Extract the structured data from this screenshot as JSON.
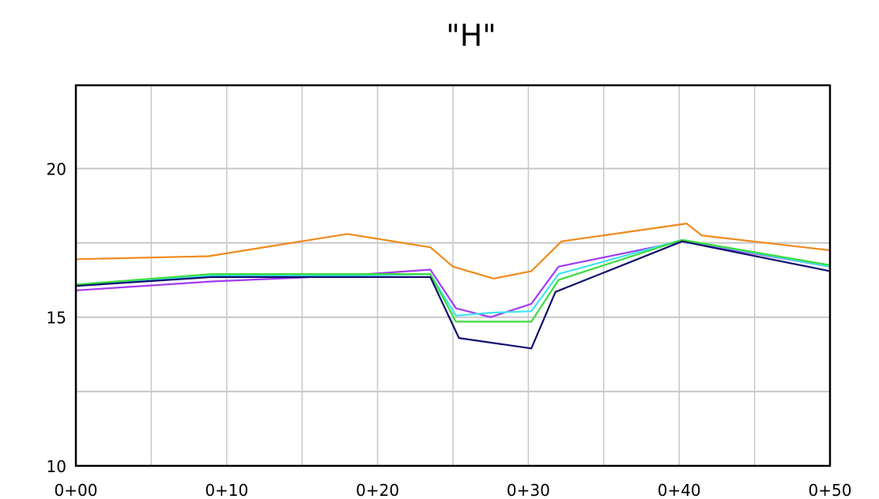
{
  "chart_data": {
    "type": "line",
    "title": "\"H\"",
    "xlabel": "",
    "ylabel": "",
    "xlim": [
      0,
      50
    ],
    "ylim": [
      10,
      22.8
    ],
    "grid": true,
    "legend": "none",
    "x_ticks": [
      {
        "value": 0,
        "label": "0+00"
      },
      {
        "value": 10,
        "label": "0+10"
      },
      {
        "value": 20,
        "label": "0+20"
      },
      {
        "value": 30,
        "label": "0+30"
      },
      {
        "value": 40,
        "label": "0+40"
      },
      {
        "value": 50,
        "label": "0+50"
      }
    ],
    "y_ticks": [
      {
        "value": 10,
        "label": "10"
      },
      {
        "value": 15,
        "label": "15"
      },
      {
        "value": 20,
        "label": "20"
      }
    ],
    "x_gridlines": [
      0,
      5,
      10,
      15,
      20,
      25,
      30,
      35,
      40,
      45,
      50
    ],
    "y_gridlines": [
      12.5,
      15,
      17.5,
      20
    ],
    "series": [
      {
        "color": "#f08a1c",
        "x": [
          0,
          8.8,
          18,
          23.5,
          25,
          27.7,
          30.2,
          32.2,
          40.5,
          41.5,
          50
        ],
        "y": [
          16.95,
          17.05,
          17.8,
          17.35,
          16.7,
          16.3,
          16.55,
          17.55,
          18.15,
          17.75,
          17.25
        ]
      },
      {
        "color": "#a23cf0",
        "x": [
          0,
          9,
          18,
          23.5,
          25.2,
          27.5,
          30.2,
          32,
          40.2,
          50
        ],
        "y": [
          15.9,
          16.2,
          16.4,
          16.6,
          15.3,
          15,
          15.45,
          16.7,
          17.55,
          16.7
        ]
      },
      {
        "color": "#3ce6f0",
        "x": [
          0,
          9,
          18,
          23.5,
          25.2,
          27.5,
          30.2,
          32,
          40.2,
          50
        ],
        "y": [
          16.05,
          16.4,
          16.4,
          16.45,
          15.05,
          15.15,
          15.2,
          16.45,
          17.6,
          16.7
        ]
      },
      {
        "color": "#3cdc3c",
        "x": [
          0,
          9,
          18,
          23.5,
          25.2,
          27.5,
          30.2,
          32,
          40.2,
          50
        ],
        "y": [
          16.1,
          16.45,
          16.45,
          16.45,
          14.85,
          14.85,
          14.85,
          16.25,
          17.6,
          16.75
        ]
      },
      {
        "color": "#10106e",
        "x": [
          0,
          9,
          18,
          23.5,
          25.4,
          30.2,
          31.8,
          40.2,
          50
        ],
        "y": [
          16.05,
          16.35,
          16.35,
          16.35,
          14.3,
          13.95,
          15.85,
          17.55,
          16.55
        ]
      }
    ]
  }
}
